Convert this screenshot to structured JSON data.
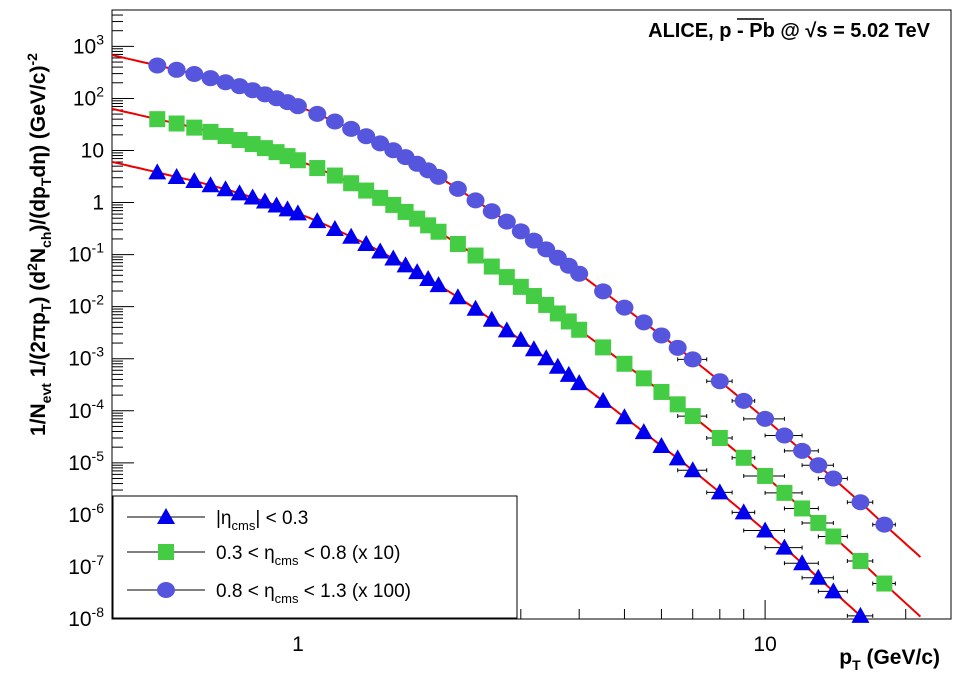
{
  "chart_data": {
    "type": "scatter",
    "title": "ALICE, p - Pb @ √s = 5.02 TeV",
    "xlabel": "p_T (GeV/c)",
    "ylabel": "1/N_evt 1/(2πp_T) (d²N_ch)/(dp_T dη) (GeV/c)^-2",
    "xscale": "log",
    "yscale": "log",
    "xlim": [
      0.4,
      25
    ],
    "ylim": [
      1e-08,
      5000
    ],
    "x_tick_labels": [
      "1",
      "10"
    ],
    "y_tick_labels": [
      {
        "base": "10",
        "exp": "-8"
      },
      {
        "base": "10",
        "exp": "-7"
      },
      {
        "base": "10",
        "exp": "-6"
      },
      {
        "base": "10",
        "exp": "-5"
      },
      {
        "base": "10",
        "exp": "-4"
      },
      {
        "base": "10",
        "exp": "-3"
      },
      {
        "base": "10",
        "exp": "-2"
      },
      {
        "base": "10",
        "exp": "-1"
      },
      {
        "base": "1",
        "exp": ""
      },
      {
        "base": "10",
        "exp": ""
      },
      {
        "base": "10",
        "exp": "2"
      },
      {
        "base": "10",
        "exp": "3"
      }
    ],
    "legend_position": "bottom-left",
    "fit_color": "#ee0000",
    "series": [
      {
        "name": "|ηcms| < 0.3",
        "legend_parts": {
          "pre": "|η",
          "sub": "cms",
          "post": "| < 0.3"
        },
        "marker": "triangle",
        "color": "#0000ee",
        "x": [
          0.5,
          0.55,
          0.6,
          0.65,
          0.7,
          0.75,
          0.8,
          0.85,
          0.9,
          0.95,
          1.0,
          1.1,
          1.2,
          1.3,
          1.4,
          1.5,
          1.6,
          1.7,
          1.8,
          1.9,
          2.0,
          2.2,
          2.4,
          2.6,
          2.8,
          3.0,
          3.2,
          3.4,
          3.6,
          3.8,
          4.0,
          4.5,
          5.0,
          5.5,
          6.0,
          6.5,
          7.0,
          8.0,
          9.0,
          10.0,
          11.0,
          12.0,
          13.0,
          14.0,
          16.0,
          18.0
        ],
        "y": [
          3.8,
          3.1,
          2.6,
          2.15,
          1.8,
          1.5,
          1.25,
          1.05,
          0.88,
          0.74,
          0.62,
          0.44,
          0.31,
          0.22,
          0.16,
          0.115,
          0.084,
          0.062,
          0.046,
          0.034,
          0.026,
          0.0152,
          0.0091,
          0.0056,
          0.0035,
          0.0023,
          0.00152,
          0.00102,
          0.0007,
          0.00049,
          0.00034,
          0.000155,
          7.5e-05,
          3.9e-05,
          2.1e-05,
          1.22e-05,
          7.2e-06,
          2.7e-06,
          1.12e-06,
          5e-07,
          2.35e-07,
          1.18e-07,
          6.2e-08,
          3.4e-08,
          1.15e-08,
          4.2e-09
        ]
      },
      {
        "name": "0.3 < ηcms < 0.8 (x 10)",
        "legend_parts": {
          "pre": "0.3 < η",
          "sub": "cms",
          "post": " < 0.8 (x 10)"
        },
        "marker": "square",
        "color": "#44cc44",
        "x": [
          0.5,
          0.55,
          0.6,
          0.65,
          0.7,
          0.75,
          0.8,
          0.85,
          0.9,
          0.95,
          1.0,
          1.1,
          1.2,
          1.3,
          1.4,
          1.5,
          1.6,
          1.7,
          1.8,
          1.9,
          2.0,
          2.2,
          2.4,
          2.6,
          2.8,
          3.0,
          3.2,
          3.4,
          3.6,
          3.8,
          4.0,
          4.5,
          5.0,
          5.5,
          6.0,
          6.5,
          7.0,
          8.0,
          9.0,
          10.0,
          11.0,
          12.0,
          13.0,
          14.0,
          16.0,
          18.0
        ],
        "y": [
          40,
          33,
          27.5,
          22.8,
          19,
          15.9,
          13.3,
          11.1,
          9.3,
          7.8,
          6.5,
          4.6,
          3.3,
          2.35,
          1.7,
          1.23,
          0.9,
          0.66,
          0.49,
          0.365,
          0.275,
          0.16,
          0.096,
          0.059,
          0.037,
          0.024,
          0.016,
          0.0108,
          0.0074,
          0.0052,
          0.0036,
          0.00165,
          0.0008,
          0.00042,
          0.00023,
          0.000133,
          7.9e-05,
          3e-05,
          1.25e-05,
          5.6e-06,
          2.65e-06,
          1.33e-06,
          7e-07,
          3.85e-07,
          1.3e-07,
          4.8e-08
        ]
      },
      {
        "name": "0.8 < ηcms < 1.3 (x 100)",
        "legend_parts": {
          "pre": "0.8 < η",
          "sub": "cms",
          "post": " < 1.3 (x 100)"
        },
        "marker": "circle",
        "color": "#5555dd",
        "x": [
          0.5,
          0.55,
          0.6,
          0.65,
          0.7,
          0.75,
          0.8,
          0.85,
          0.9,
          0.95,
          1.0,
          1.1,
          1.2,
          1.3,
          1.4,
          1.5,
          1.6,
          1.7,
          1.8,
          1.9,
          2.0,
          2.2,
          2.4,
          2.6,
          2.8,
          3.0,
          3.2,
          3.4,
          3.6,
          3.8,
          4.0,
          4.5,
          5.0,
          5.5,
          6.0,
          6.5,
          7.0,
          8.0,
          9.0,
          10.0,
          11.0,
          12.0,
          13.0,
          14.0,
          16.0,
          18.0
        ],
        "y": [
          430,
          355,
          295,
          245,
          205,
          172,
          144,
          120,
          101,
          85,
          71,
          50.5,
          36,
          26,
          18.8,
          13.7,
          10.1,
          7.45,
          5.55,
          4.15,
          3.12,
          1.83,
          1.1,
          0.68,
          0.43,
          0.28,
          0.186,
          0.126,
          0.087,
          0.061,
          0.043,
          0.0197,
          0.0096,
          0.005,
          0.0028,
          0.00162,
          0.00097,
          0.00037,
          0.000155,
          7e-05,
          3.35e-05,
          1.7e-05,
          9e-06,
          5e-06,
          1.75e-06,
          6.5e-07
        ]
      }
    ]
  }
}
